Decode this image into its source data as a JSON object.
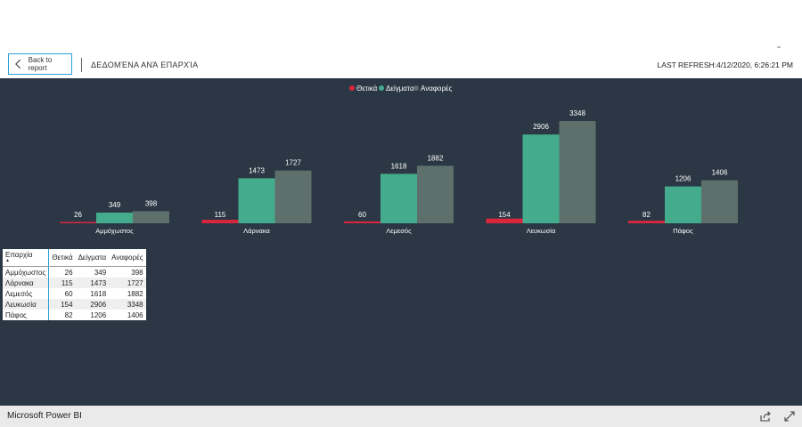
{
  "header": {
    "back_label": "Back to report",
    "title": "ΔΕΔΟΜΈΝΑ ΑΝΆ ΕΠΑΡΧΊΑ",
    "last_refresh": "LAST REFRESH:4/12/2020, 6:26:21 PM"
  },
  "colors": {
    "thetika": "#d9263d",
    "deigmata": "#44ac8c",
    "anafores": "#5d706b",
    "background": "#2b3744"
  },
  "chart_data": {
    "type": "bar",
    "categories": [
      "Αμμόχωστος",
      "Λάρνακα",
      "Λεμεσός",
      "Λευκωσία",
      "Πάφος"
    ],
    "series": [
      {
        "name": "Θετικά",
        "values": [
          26,
          115,
          60,
          154,
          82
        ]
      },
      {
        "name": "Δείγματα",
        "values": [
          349,
          1473,
          1618,
          2906,
          1206
        ]
      },
      {
        "name": "Αναφορές",
        "values": [
          398,
          1727,
          1882,
          3348,
          1406
        ]
      }
    ],
    "legend_position": "top-center",
    "ylim": [
      0,
      3348
    ],
    "grid": false
  },
  "table": {
    "headers": [
      "Επαρχία",
      "Θετικά",
      "Δείγματα",
      "Αναφορές"
    ],
    "sort_indicator": "▲",
    "rows": [
      [
        "Αμμόχωστος",
        "26",
        "349",
        "398"
      ],
      [
        "Λάρνακα",
        "115",
        "1473",
        "1727"
      ],
      [
        "Λεμεσός",
        "60",
        "1618",
        "1882"
      ],
      [
        "Λευκωσία",
        "154",
        "2906",
        "3348"
      ],
      [
        "Πάφος",
        "82",
        "1206",
        "1406"
      ]
    ]
  },
  "footer": {
    "brand": "Microsoft Power BI",
    "share_icon": "share-icon",
    "fullscreen_icon": "fullscreen-icon"
  }
}
